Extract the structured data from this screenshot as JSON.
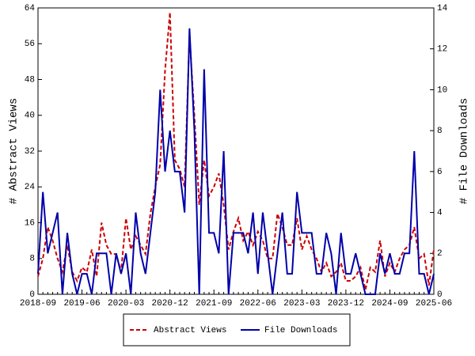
{
  "chart_data": {
    "type": "line",
    "y_label": "# Abstract Views",
    "y2_label": "# File Downloads",
    "categories": [
      "2018-09",
      null,
      null,
      null,
      null,
      null,
      null,
      null,
      null,
      "2019-06",
      null,
      null,
      null,
      null,
      null,
      null,
      null,
      null,
      "2020-03",
      null,
      null,
      null,
      null,
      null,
      null,
      null,
      null,
      "2020-12",
      null,
      null,
      null,
      null,
      null,
      null,
      null,
      null,
      "2021-09",
      null,
      null,
      null,
      null,
      null,
      null,
      null,
      null,
      "2022-06",
      null,
      null,
      null,
      null,
      null,
      null,
      null,
      null,
      "2023-03",
      null,
      null,
      null,
      null,
      null,
      null,
      null,
      null,
      "2023-12",
      null,
      null,
      null,
      null,
      null,
      null,
      null,
      null,
      "2024-09",
      null,
      null,
      null,
      null,
      null,
      null,
      null,
      null,
      "2025-06"
    ],
    "series": [
      {
        "name": "Abstract Views",
        "color": "#cc0000",
        "linestyle": "dashed",
        "axis": "y",
        "values": [
          4,
          8,
          15,
          12,
          8,
          5,
          11,
          5,
          3,
          6,
          5,
          10,
          4,
          16,
          11,
          9,
          9,
          5,
          17,
          10,
          13,
          11,
          9,
          18,
          24,
          29,
          50,
          63,
          30,
          28,
          24,
          58,
          40,
          20,
          30,
          22,
          24,
          27,
          20,
          10,
          14,
          17,
          12,
          14,
          11,
          14,
          12,
          8,
          8,
          18,
          15,
          11,
          11,
          17,
          10,
          13,
          10,
          8,
          5,
          7,
          4,
          5,
          7,
          3,
          3,
          4,
          6,
          1,
          6,
          5,
          12,
          4,
          7,
          5,
          8,
          10,
          11,
          15,
          8,
          9,
          2,
          10
        ]
      },
      {
        "name": "File Downloads",
        "color": "#0000aa",
        "linestyle": "solid",
        "axis": "y2",
        "values": [
          1,
          5,
          2,
          3,
          4,
          0,
          3,
          1,
          0,
          1,
          1,
          0,
          2,
          2,
          2,
          0,
          2,
          1,
          2,
          0,
          4,
          2,
          1,
          3,
          5,
          10,
          6,
          8,
          6,
          6,
          4,
          13,
          8,
          0,
          11,
          3,
          3,
          2,
          7,
          0,
          3,
          3,
          3,
          2,
          4,
          1,
          4,
          2,
          0,
          2,
          4,
          1,
          1,
          5,
          3,
          3,
          3,
          1,
          1,
          3,
          2,
          0,
          3,
          1,
          1,
          2,
          1,
          0,
          0,
          0,
          2,
          1,
          2,
          1,
          1,
          2,
          2,
          7,
          1,
          1,
          0,
          1
        ]
      }
    ],
    "ylim": [
      0,
      64
    ],
    "yticks": [
      0,
      8,
      16,
      24,
      32,
      40,
      48,
      56,
      64
    ],
    "y2lim": [
      0,
      14
    ],
    "y2ticks": [
      0,
      2,
      4,
      6,
      8,
      10,
      12,
      14
    ],
    "legend": "bottom"
  }
}
